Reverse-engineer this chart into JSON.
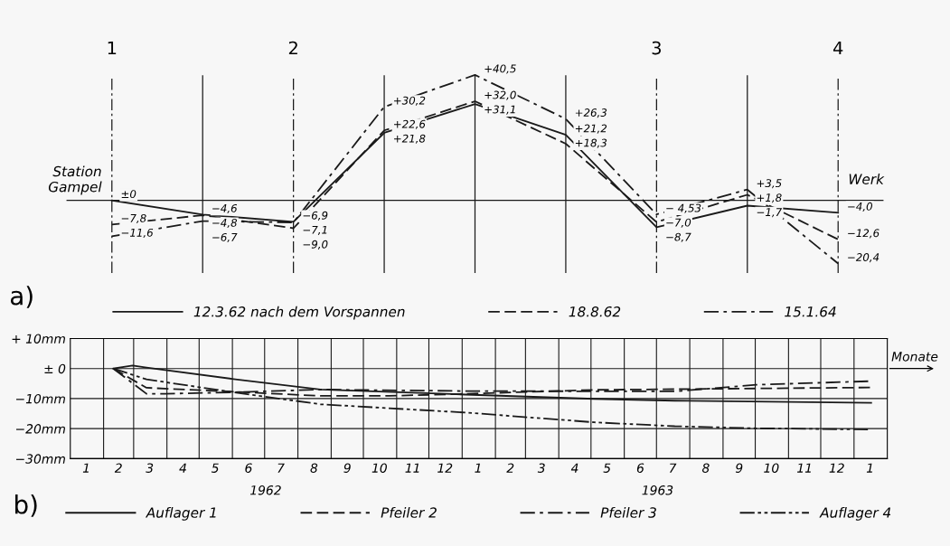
{
  "chart_data": [
    {
      "type": "line",
      "categories": [
        "1",
        null,
        "2",
        null,
        null,
        null,
        "3",
        null,
        "4"
      ],
      "grid": "x",
      "legend": "bottom",
      "annotations": [
        "a)",
        "Station Gampel",
        "Werk"
      ],
      "series": [
        {
          "name": "12.3.62 nach dem Vorspannen",
          "color": "#1a1a1a",
          "line_style": "solid",
          "values": [
            0,
            -4.6,
            -6.9,
            21.8,
            31.1,
            21.2,
            -8.7,
            -1.7,
            -4.0
          ],
          "value_labels": [
            "±0",
            "−4,6",
            "−6,9",
            "+21,8",
            "+31,1",
            "+21,2",
            "−8,7",
            "−1,7",
            "−4,0"
          ]
        },
        {
          "name": "18.8.62",
          "color": "#1a1a1a",
          "line_style": "dashed",
          "values": [
            -7.8,
            -4.8,
            -9.0,
            22.6,
            32.0,
            18.3,
            -7.0,
            1.8,
            -12.6
          ],
          "value_labels": [
            "−7,8",
            "−4,8",
            "−9,0",
            "+22,6",
            "+32,0",
            "+18,3",
            "−7,0",
            "+1,8",
            "−12,6"
          ]
        },
        {
          "name": "15.1.64",
          "color": "#1a1a1a",
          "line_style": "dashdot",
          "values": [
            -11.6,
            -6.7,
            -7.1,
            30.2,
            40.5,
            26.3,
            -4.53,
            3.5,
            -20.4
          ],
          "value_labels": [
            "−11,6",
            "−6,7",
            "−7,1",
            "+30,2",
            "+40,5",
            "+26,3",
            "− 4,53",
            "+3,5",
            "−20,4"
          ]
        }
      ]
    },
    {
      "type": "line",
      "xlabel": "Monate",
      "grid": true,
      "legend": "bottom",
      "xlim": [
        "1962-01-01",
        "1964-02-01"
      ],
      "ylim": [
        -30,
        10
      ],
      "yticks": [
        {
          "value": 10,
          "label": "+ 10mm"
        },
        {
          "value": 0,
          "label": "± 0"
        },
        {
          "value": -10,
          "label": "−10mm"
        },
        {
          "value": -20,
          "label": "−20mm"
        },
        {
          "value": -30,
          "label": "−30mm"
        }
      ],
      "xticks": [
        {
          "value": "1962-01-16",
          "label": "1"
        },
        {
          "value": "1962-02-01",
          "label": null
        },
        {
          "value": "1962-02-15",
          "label": "2"
        },
        {
          "value": "1962-03-01",
          "label": null
        },
        {
          "value": "1962-03-16",
          "label": "3"
        },
        {
          "value": "1962-04-01",
          "label": null
        },
        {
          "value": "1962-04-16",
          "label": "4"
        },
        {
          "value": "1962-05-01",
          "label": null
        },
        {
          "value": "1962-05-16",
          "label": "5"
        },
        {
          "value": "1962-06-01",
          "label": null
        },
        {
          "value": "1962-06-16",
          "label": "6"
        },
        {
          "value": "1962-07-01",
          "label": null
        },
        {
          "value": "1962-07-16",
          "label": "7"
        },
        {
          "value": "1962-08-01",
          "label": null
        },
        {
          "value": "1962-08-16",
          "label": "8"
        },
        {
          "value": "1962-09-01",
          "label": null
        },
        {
          "value": "1962-09-16",
          "label": "9"
        },
        {
          "value": "1962-10-01",
          "label": null
        },
        {
          "value": "1962-10-16",
          "label": "10"
        },
        {
          "value": "1962-11-01",
          "label": null
        },
        {
          "value": "1962-11-16",
          "label": "11"
        },
        {
          "value": "1962-12-01",
          "label": null
        },
        {
          "value": "1962-12-16",
          "label": "12"
        },
        {
          "value": "1963-01-01",
          "label": null
        },
        {
          "value": "1963-01-16",
          "label": "1"
        },
        {
          "value": "1963-02-01",
          "label": null
        },
        {
          "value": "1963-02-15",
          "label": "2"
        },
        {
          "value": "1963-03-01",
          "label": null
        },
        {
          "value": "1963-03-16",
          "label": "3"
        },
        {
          "value": "1963-04-01",
          "label": null
        },
        {
          "value": "1963-04-16",
          "label": "4"
        },
        {
          "value": "1963-05-01",
          "label": null
        },
        {
          "value": "1963-05-16",
          "label": "5"
        },
        {
          "value": "1963-06-01",
          "label": null
        },
        {
          "value": "1963-06-16",
          "label": "6"
        },
        {
          "value": "1963-07-01",
          "label": null
        },
        {
          "value": "1963-07-16",
          "label": "7"
        },
        {
          "value": "1963-08-01",
          "label": null
        },
        {
          "value": "1963-08-16",
          "label": "8"
        },
        {
          "value": "1963-09-01",
          "label": null
        },
        {
          "value": "1963-09-16",
          "label": "9"
        },
        {
          "value": "1963-10-01",
          "label": null
        },
        {
          "value": "1963-10-16",
          "label": "10"
        },
        {
          "value": "1963-11-01",
          "label": null
        },
        {
          "value": "1963-11-16",
          "label": "11"
        },
        {
          "value": "1963-12-01",
          "label": null
        },
        {
          "value": "1963-12-16",
          "label": "12"
        },
        {
          "value": "1964-01-01",
          "label": null
        },
        {
          "value": "1964-01-16",
          "label": "1"
        }
      ],
      "annotations": [
        "b)",
        "1962",
        "1963"
      ],
      "series": [
        {
          "name": "Auflager 1",
          "color": "#1a1a1a",
          "line_style": "solid",
          "x": [
            "1962-02-10",
            "1962-02-28",
            "1962-03-13",
            "1962-06-02",
            "1962-08-22",
            "1962-12-22",
            "1963-05-04",
            "1963-07-18",
            "1964-01-17"
          ],
          "values": [
            0,
            1.0,
            0.3,
            -3.5,
            -7.0,
            -8.5,
            -10.1,
            -10.7,
            -11.4
          ]
        },
        {
          "name": "Pfeiler 2",
          "color": "#1a1a1a",
          "line_style": "dashed",
          "x": [
            "1962-02-10",
            "1962-03-07",
            "1962-03-13",
            "1962-06-02",
            "1962-08-22",
            "1962-10-25",
            "1963-01-06",
            "1963-05-04",
            "1964-01-17"
          ],
          "values": [
            0,
            -5.2,
            -6.4,
            -7.7,
            -9.1,
            -9.1,
            -8.4,
            -7.1,
            -6.3
          ]
        },
        {
          "name": "Pfeiler 3",
          "color": "#1a1a1a",
          "line_style": "dashdot",
          "x": [
            "1962-02-10",
            "1962-03-13",
            "1962-03-30",
            "1962-06-02",
            "1962-08-22",
            "1963-01-06",
            "1963-07-18",
            "1963-10-02",
            "1964-01-17"
          ],
          "values": [
            0,
            -8.4,
            -8.4,
            -7.9,
            -7.0,
            -7.5,
            -7.6,
            -5.4,
            -4.2
          ]
        },
        {
          "name": "Auflager 4",
          "color": "#1a1a1a",
          "line_style": "dashdotdot",
          "x": [
            "1962-02-10",
            "1962-03-13",
            "1962-06-02",
            "1962-08-22",
            "1963-01-06",
            "1963-05-04",
            "1963-07-18",
            "1963-10-02",
            "1964-01-17"
          ],
          "values": [
            0,
            -3.6,
            -7.9,
            -11.9,
            -14.7,
            -17.9,
            -19.2,
            -19.9,
            -20.3
          ]
        }
      ]
    }
  ]
}
